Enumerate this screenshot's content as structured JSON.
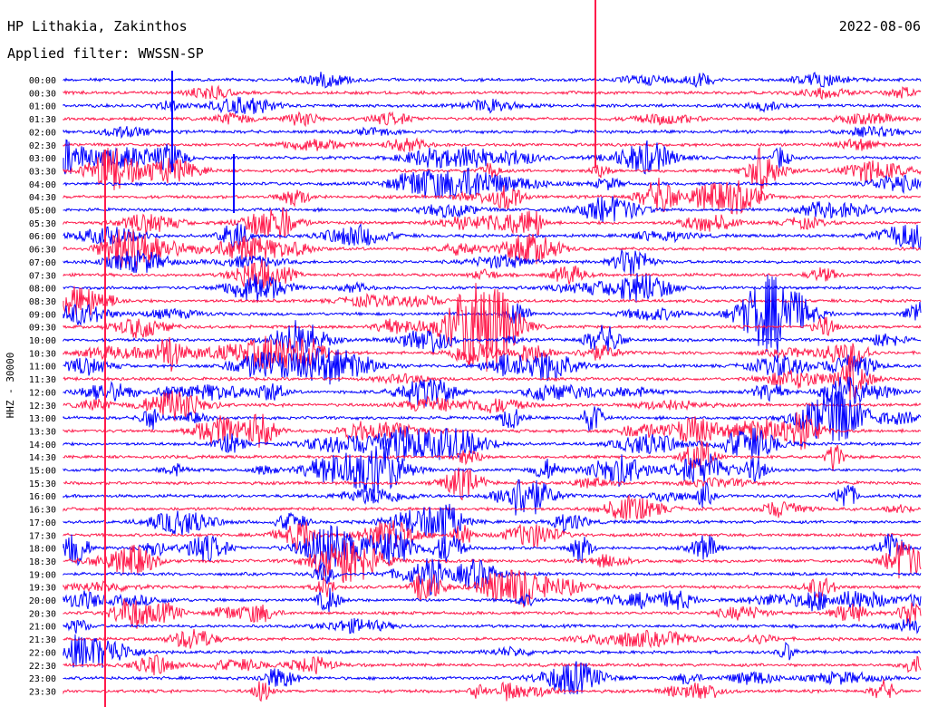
{
  "header": {
    "station": "HP Lithakia, Zakinthos",
    "filter": "Applied filter: WWSSN-SP",
    "date": "2022-08-06"
  },
  "chart_data": {
    "type": "line",
    "title": "HP Lithakia, Zakinthos",
    "subtitle": "Applied filter: WWSSN-SP",
    "date": "2022-08-06",
    "ylabel": "HHZ - 30000",
    "rows": [
      "00:00",
      "00:30",
      "01:00",
      "01:30",
      "02:00",
      "02:30",
      "03:00",
      "03:30",
      "04:00",
      "04:30",
      "05:00",
      "05:30",
      "06:00",
      "06:30",
      "07:00",
      "07:30",
      "08:00",
      "08:30",
      "09:00",
      "09:30",
      "10:00",
      "10:30",
      "11:00",
      "11:30",
      "12:00",
      "12:30",
      "13:00",
      "13:30",
      "14:00",
      "14:30",
      "15:00",
      "15:30",
      "16:00",
      "16:30",
      "17:00",
      "17:30",
      "18:00",
      "18:30",
      "19:00",
      "19:30",
      "20:00",
      "20:30",
      "21:00",
      "21:30",
      "22:00",
      "22:30",
      "23:00",
      "23:30"
    ],
    "series_colors": [
      "#0000ff",
      "#ff1a4b"
    ],
    "grid": false
  }
}
